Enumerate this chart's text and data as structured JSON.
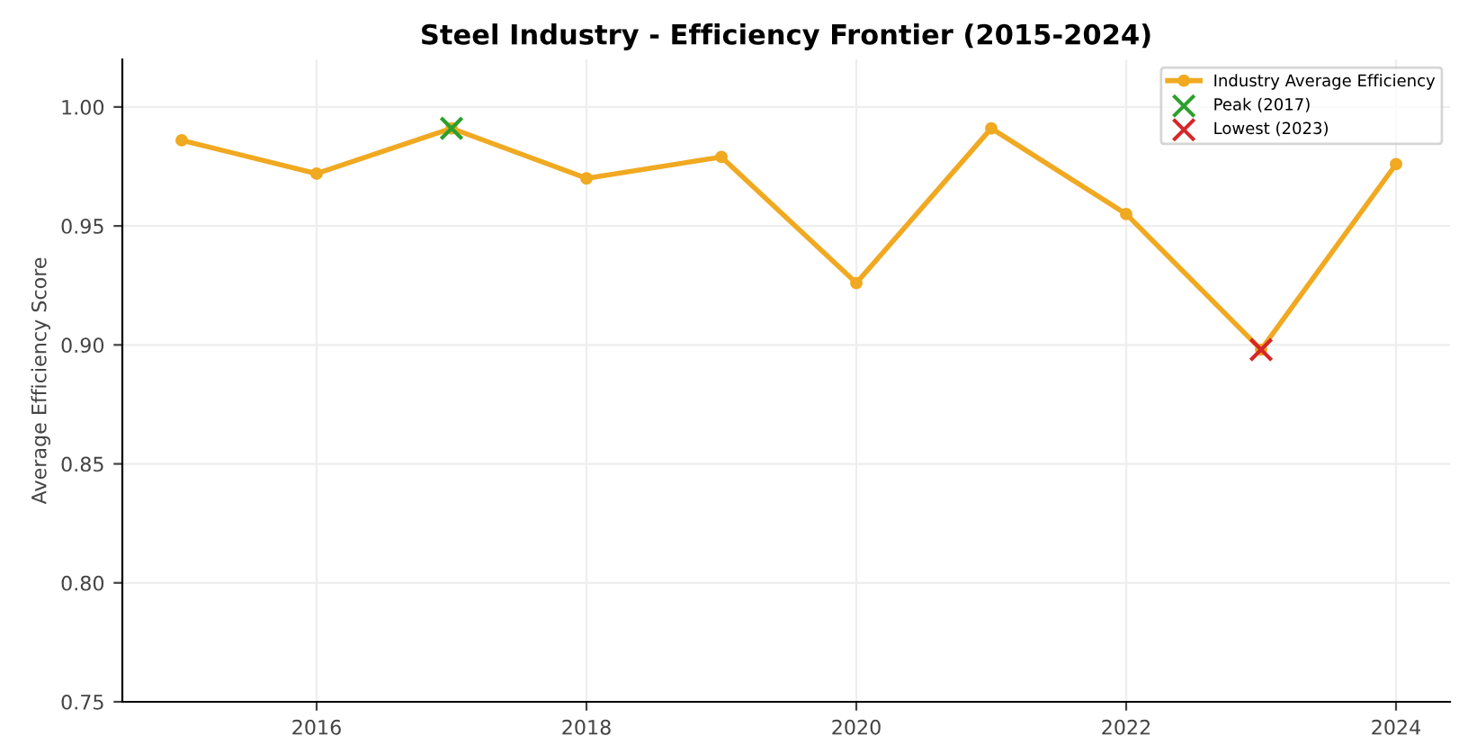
{
  "chart_data": {
    "type": "line",
    "title": "Steel Industry - Efficiency Frontier (2015-2024)",
    "ylabel": "Average Efficiency Score",
    "x": [
      2015,
      2016,
      2017,
      2018,
      2019,
      2020,
      2021,
      2022,
      2023,
      2024
    ],
    "series": [
      {
        "name": "Industry Average Efficiency",
        "color": "#f0a920",
        "values": [
          0.986,
          0.972,
          0.991,
          0.97,
          0.979,
          0.926,
          0.991,
          0.955,
          0.898,
          0.976
        ],
        "marker": "circle"
      },
      {
        "name": "Peak (2017)",
        "type": "scatter",
        "color": "#2ca02c",
        "x": [
          2017
        ],
        "values": [
          0.991
        ],
        "marker": "cross"
      },
      {
        "name": "Lowest (2023)",
        "type": "scatter",
        "color": "#d62728",
        "x": [
          2023
        ],
        "values": [
          0.898
        ],
        "marker": "cross"
      }
    ],
    "xlim": [
      2014.56,
      2024.4
    ],
    "xticks": [
      2016,
      2018,
      2020,
      2022,
      2024
    ],
    "ylim": [
      0.75,
      1.02
    ],
    "yticks": [
      {
        "value": 0.75,
        "label": "0.75"
      },
      {
        "value": 0.8,
        "label": "0.80"
      },
      {
        "value": 0.85,
        "label": "0.85"
      },
      {
        "value": 0.9,
        "label": "0.90"
      },
      {
        "value": 0.95,
        "label": "0.95"
      },
      {
        "value": 1.0,
        "label": "1.00"
      }
    ],
    "grid": true,
    "legend": "top right"
  }
}
